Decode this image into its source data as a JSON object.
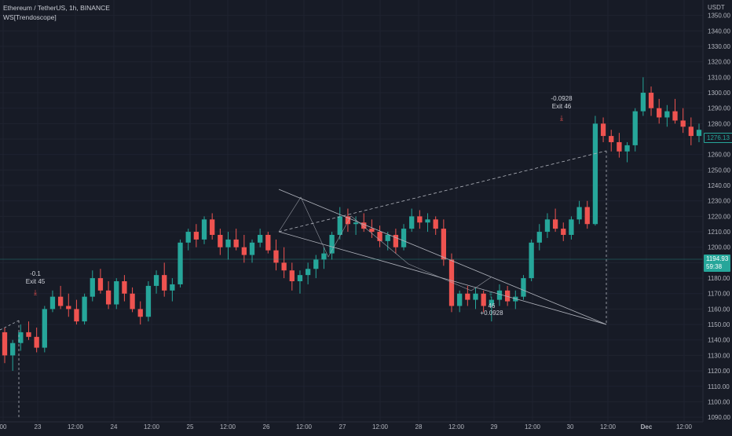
{
  "header": {
    "symbol_line": "Ethereum / TetherUS, 1h, BINANCE",
    "indicator_line": "WS[Trendoscope]"
  },
  "price_axis": {
    "currency": "USDT",
    "labels": [
      "1350.00",
      "1340.00",
      "1330.00",
      "1320.00",
      "1310.00",
      "1300.00",
      "1290.00",
      "1280.00",
      "1270.00",
      "1260.00",
      "1250.00",
      "1240.00",
      "1230.00",
      "1220.00",
      "1210.00",
      "1200.00",
      "1190.00",
      "1180.00",
      "1170.00",
      "1160.00",
      "1150.00",
      "1140.00",
      "1130.00",
      "1120.00",
      "1110.00",
      "1100.00",
      "1090.00"
    ]
  },
  "time_axis": {
    "labels": [
      "00",
      "23",
      "12:00",
      "24",
      "12:00",
      "25",
      "12:00",
      "26",
      "12:00",
      "27",
      "12:00",
      "28",
      "12:00",
      "29",
      "12:00",
      "30",
      "12:00",
      "Dec",
      "12:00"
    ]
  },
  "tags": {
    "last_price": "1276.13",
    "cross_price": "1194.93",
    "countdown": "59:38"
  },
  "annotations": {
    "exit1_pct": "-0.1",
    "exit1_label": "Exit 45",
    "exit2_pct": "-0.0928",
    "exit2_label": "Exit 46",
    "entry_num": "46",
    "entry_pct": "+0.0928"
  },
  "colors": {
    "background": "#171b26",
    "up": "#26a69a",
    "down": "#ef5350",
    "pattern": "#b2b5be",
    "axis_text": "#b2b5be"
  },
  "chart_data": {
    "type": "candlestick",
    "ylim": [
      1087,
      1360
    ],
    "y_unit": "USDT",
    "candles_ohlc": [
      [
        1145,
        1148,
        1125,
        1130
      ],
      [
        1130,
        1140,
        1120,
        1138
      ],
      [
        1138,
        1150,
        1133,
        1145
      ],
      [
        1145,
        1152,
        1140,
        1142
      ],
      [
        1142,
        1148,
        1132,
        1135
      ],
      [
        1135,
        1162,
        1132,
        1160
      ],
      [
        1160,
        1172,
        1158,
        1168
      ],
      [
        1168,
        1175,
        1160,
        1162
      ],
      [
        1162,
        1170,
        1155,
        1160
      ],
      [
        1160,
        1166,
        1150,
        1152
      ],
      [
        1152,
        1170,
        1150,
        1168
      ],
      [
        1168,
        1185,
        1165,
        1180
      ],
      [
        1180,
        1186,
        1170,
        1172
      ],
      [
        1172,
        1178,
        1160,
        1163
      ],
      [
        1163,
        1180,
        1160,
        1178
      ],
      [
        1178,
        1182,
        1165,
        1170
      ],
      [
        1170,
        1174,
        1158,
        1160
      ],
      [
        1160,
        1165,
        1150,
        1155
      ],
      [
        1155,
        1178,
        1152,
        1175
      ],
      [
        1175,
        1185,
        1170,
        1182
      ],
      [
        1182,
        1190,
        1168,
        1172
      ],
      [
        1172,
        1180,
        1165,
        1176
      ],
      [
        1176,
        1205,
        1174,
        1203
      ],
      [
        1203,
        1212,
        1198,
        1210
      ],
      [
        1210,
        1215,
        1200,
        1205
      ],
      [
        1205,
        1220,
        1202,
        1218
      ],
      [
        1218,
        1222,
        1205,
        1208
      ],
      [
        1208,
        1212,
        1195,
        1200
      ],
      [
        1200,
        1210,
        1192,
        1205
      ],
      [
        1205,
        1212,
        1198,
        1200
      ],
      [
        1200,
        1208,
        1190,
        1195
      ],
      [
        1195,
        1205,
        1190,
        1203
      ],
      [
        1203,
        1212,
        1200,
        1208
      ],
      [
        1208,
        1210,
        1196,
        1198
      ],
      [
        1198,
        1205,
        1185,
        1190
      ],
      [
        1190,
        1200,
        1180,
        1185
      ],
      [
        1185,
        1190,
        1172,
        1178
      ],
      [
        1178,
        1185,
        1170,
        1182
      ],
      [
        1182,
        1190,
        1176,
        1186
      ],
      [
        1186,
        1195,
        1180,
        1192
      ],
      [
        1192,
        1200,
        1186,
        1196
      ],
      [
        1196,
        1210,
        1192,
        1208
      ],
      [
        1208,
        1226,
        1205,
        1220
      ],
      [
        1220,
        1225,
        1210,
        1215
      ],
      [
        1215,
        1220,
        1208,
        1216
      ],
      [
        1216,
        1222,
        1210,
        1212
      ],
      [
        1212,
        1218,
        1206,
        1210
      ],
      [
        1210,
        1214,
        1200,
        1204
      ],
      [
        1204,
        1210,
        1198,
        1208
      ],
      [
        1208,
        1212,
        1196,
        1200
      ],
      [
        1200,
        1215,
        1198,
        1212
      ],
      [
        1212,
        1225,
        1210,
        1220
      ],
      [
        1220,
        1224,
        1212,
        1216
      ],
      [
        1216,
        1222,
        1210,
        1218
      ],
      [
        1218,
        1220,
        1208,
        1212
      ],
      [
        1212,
        1218,
        1188,
        1192
      ],
      [
        1192,
        1196,
        1158,
        1162
      ],
      [
        1162,
        1172,
        1158,
        1170
      ],
      [
        1170,
        1175,
        1162,
        1166
      ],
      [
        1166,
        1174,
        1160,
        1170
      ],
      [
        1170,
        1172,
        1158,
        1162
      ],
      [
        1162,
        1168,
        1152,
        1166
      ],
      [
        1166,
        1176,
        1162,
        1172
      ],
      [
        1172,
        1175,
        1162,
        1165
      ],
      [
        1165,
        1172,
        1160,
        1168
      ],
      [
        1168,
        1182,
        1166,
        1180
      ],
      [
        1180,
        1205,
        1178,
        1203
      ],
      [
        1203,
        1215,
        1198,
        1210
      ],
      [
        1210,
        1222,
        1206,
        1218
      ],
      [
        1218,
        1225,
        1210,
        1212
      ],
      [
        1212,
        1216,
        1204,
        1208
      ],
      [
        1208,
        1220,
        1205,
        1218
      ],
      [
        1218,
        1230,
        1215,
        1226
      ],
      [
        1226,
        1230,
        1212,
        1215
      ],
      [
        1215,
        1285,
        1214,
        1280
      ],
      [
        1280,
        1284,
        1268,
        1272
      ],
      [
        1272,
        1276,
        1262,
        1268
      ],
      [
        1268,
        1274,
        1258,
        1262
      ],
      [
        1262,
        1268,
        1255,
        1266
      ],
      [
        1266,
        1290,
        1262,
        1288
      ],
      [
        1288,
        1310,
        1285,
        1300
      ],
      [
        1300,
        1304,
        1285,
        1290
      ],
      [
        1290,
        1296,
        1280,
        1284
      ],
      [
        1284,
        1292,
        1278,
        1288
      ],
      [
        1288,
        1296,
        1280,
        1282
      ],
      [
        1282,
        1290,
        1274,
        1278
      ],
      [
        1278,
        1284,
        1266,
        1272
      ],
      [
        1272,
        1280,
        1268,
        1276
      ]
    ]
  }
}
